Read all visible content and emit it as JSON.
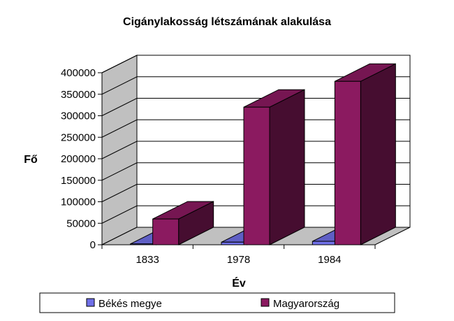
{
  "chart_data": {
    "type": "bar",
    "title": "Cigánylakosság létszámának alakulása",
    "xlabel": "Év",
    "ylabel": "Fő",
    "categories": [
      "1833",
      "1978",
      "1984"
    ],
    "series": [
      {
        "name": "Békés megye",
        "values": [
          2000,
          6000,
          8000
        ],
        "color": "#7070e8"
      },
      {
        "name": "Magyarország",
        "values": [
          60000,
          320000,
          380000
        ],
        "color": "#8b1a60"
      }
    ],
    "ylim": [
      0,
      400000
    ],
    "yticks": [
      "0",
      "50000",
      "100000",
      "150000",
      "200000",
      "250000",
      "300000",
      "350000",
      "400000"
    ],
    "grid": true,
    "legend_position": "bottom",
    "style": "3d-column"
  }
}
